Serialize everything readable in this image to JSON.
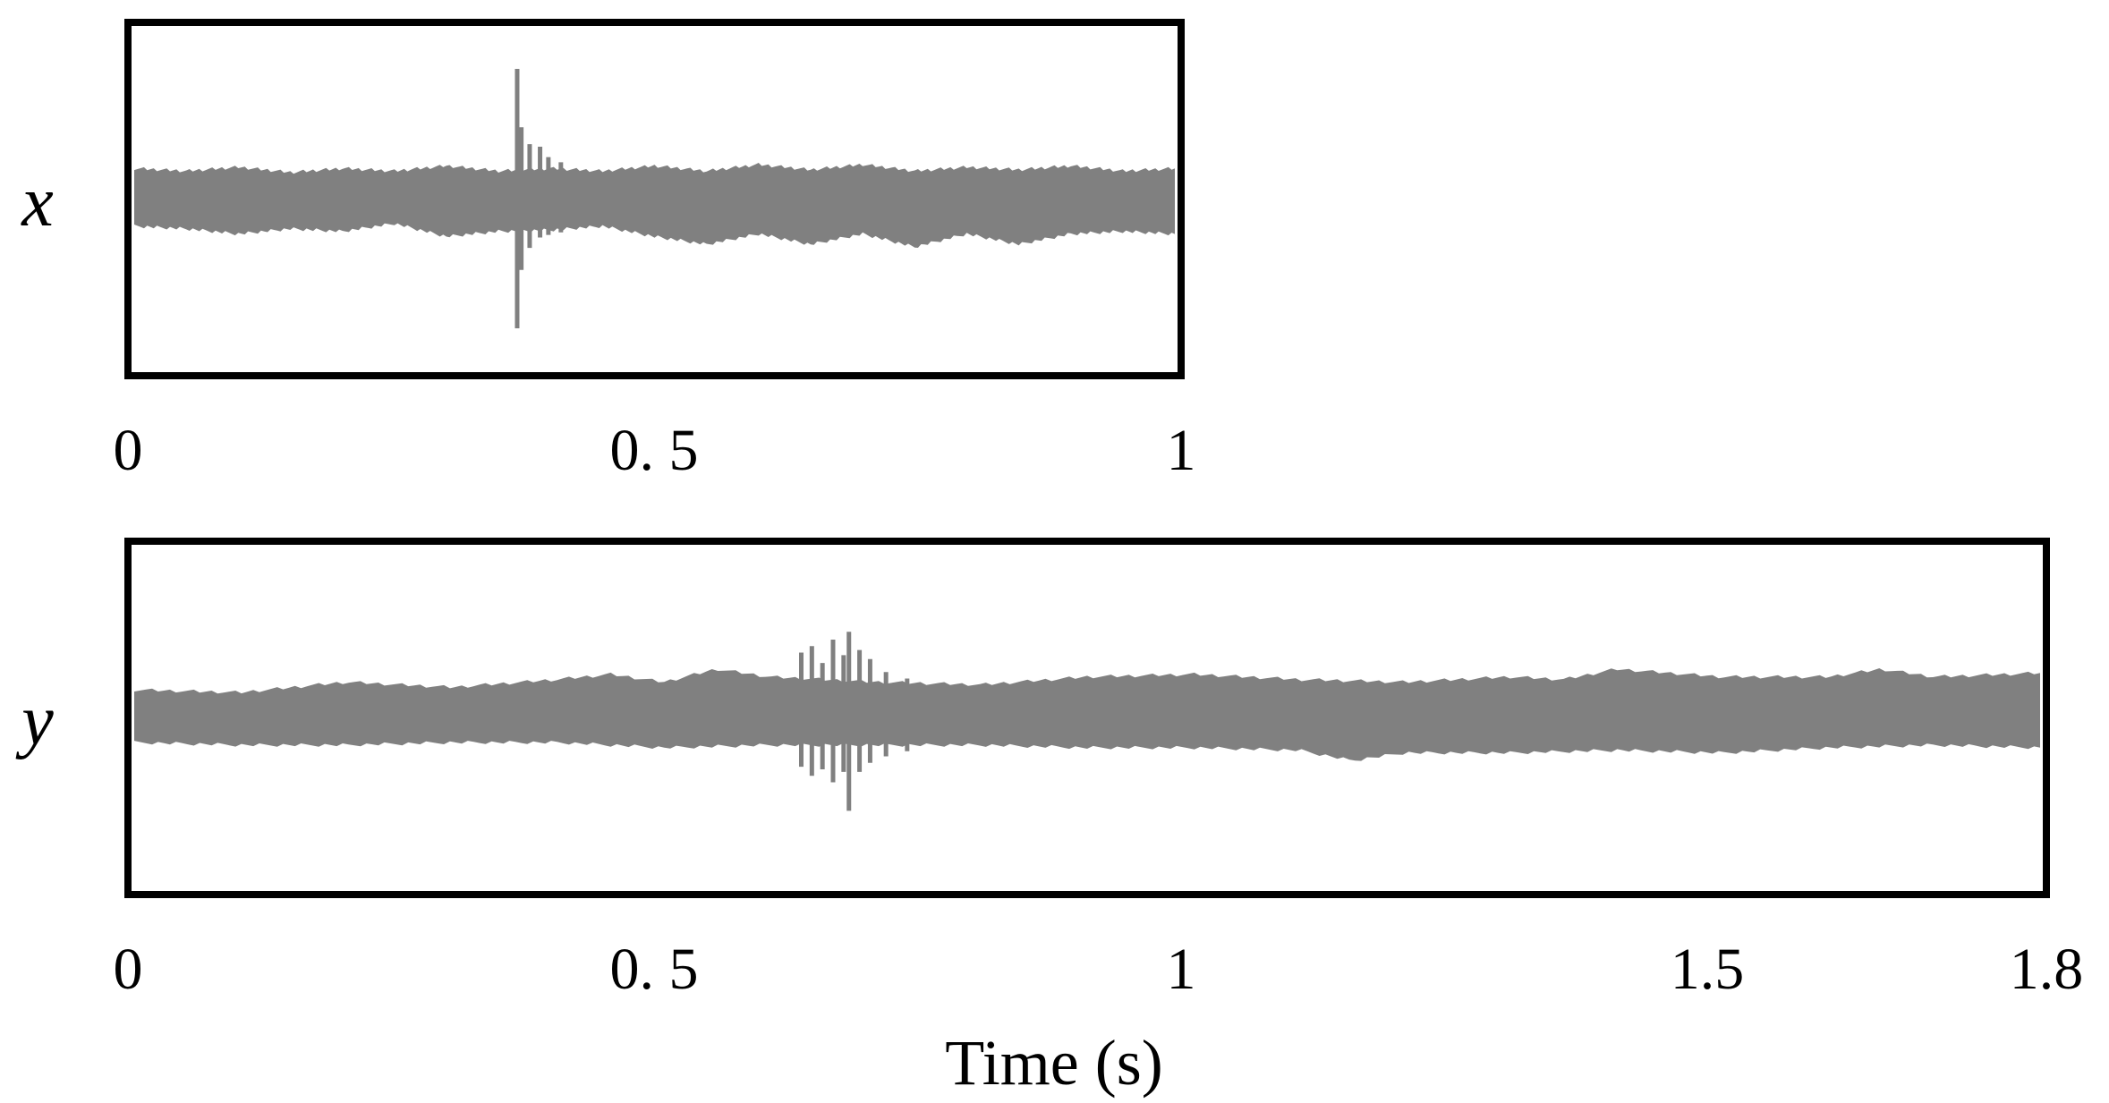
{
  "chart_data": [
    {
      "type": "line",
      "ylabel": "x",
      "xlabel": "",
      "xlim": [
        0,
        1
      ],
      "x_ticks": [
        "0",
        "0. 5",
        "1"
      ],
      "x_tick_values": [
        0,
        0.5,
        1
      ],
      "grid": false,
      "signal_color": "#808080",
      "series": [
        {
          "envelope_upper": [
            [
              0,
              0.22
            ],
            [
              0.05,
              0.2
            ],
            [
              0.1,
              0.23
            ],
            [
              0.15,
              0.19
            ],
            [
              0.2,
              0.22
            ],
            [
              0.25,
              0.2
            ],
            [
              0.3,
              0.24
            ],
            [
              0.35,
              0.2
            ],
            [
              0.4,
              0.22
            ],
            [
              0.45,
              0.2
            ],
            [
              0.5,
              0.24
            ],
            [
              0.55,
              0.2
            ],
            [
              0.6,
              0.25
            ],
            [
              0.65,
              0.21
            ],
            [
              0.7,
              0.25
            ],
            [
              0.75,
              0.2
            ],
            [
              0.8,
              0.23
            ],
            [
              0.85,
              0.21
            ],
            [
              0.9,
              0.24
            ],
            [
              0.95,
              0.2
            ],
            [
              1,
              0.22
            ]
          ],
          "envelope_lower": [
            [
              0,
              -0.2
            ],
            [
              0.05,
              -0.22
            ],
            [
              0.1,
              -0.26
            ],
            [
              0.15,
              -0.22
            ],
            [
              0.2,
              -0.24
            ],
            [
              0.25,
              -0.18
            ],
            [
              0.3,
              -0.28
            ],
            [
              0.35,
              -0.24
            ],
            [
              0.4,
              -0.23
            ],
            [
              0.45,
              -0.2
            ],
            [
              0.5,
              -0.28
            ],
            [
              0.55,
              -0.34
            ],
            [
              0.6,
              -0.26
            ],
            [
              0.65,
              -0.34
            ],
            [
              0.7,
              -0.26
            ],
            [
              0.75,
              -0.36
            ],
            [
              0.8,
              -0.26
            ],
            [
              0.85,
              -0.34
            ],
            [
              0.9,
              -0.26
            ],
            [
              0.95,
              -0.24
            ],
            [
              1,
              -0.26
            ]
          ],
          "events": [
            {
              "x": 0.368,
              "max": 1.0,
              "min": -1.0
            },
            {
              "x": 0.372,
              "max": 0.55,
              "min": -0.55
            },
            {
              "x": 0.38,
              "max": 0.42,
              "min": -0.38
            },
            {
              "x": 0.39,
              "max": 0.4,
              "min": -0.3
            },
            {
              "x": 0.398,
              "max": 0.32,
              "min": -0.28
            },
            {
              "x": 0.41,
              "max": 0.28,
              "min": -0.26
            }
          ]
        }
      ]
    },
    {
      "type": "line",
      "ylabel": "y",
      "xlabel": "Time (s)",
      "xlim": [
        0,
        1.8
      ],
      "x_ticks": [
        "0",
        "0. 5",
        "1",
        "1.5",
        "1.8"
      ],
      "x_tick_values": [
        0,
        0.5,
        1,
        1.5,
        1.8
      ],
      "grid": false,
      "signal_color": "#808080",
      "series": [
        {
          "envelope_upper": [
            [
              0,
              0.2
            ],
            [
              0.1,
              0.18
            ],
            [
              0.2,
              0.26
            ],
            [
              0.3,
              0.22
            ],
            [
              0.4,
              0.28
            ],
            [
              0.45,
              0.32
            ],
            [
              0.5,
              0.26
            ],
            [
              0.55,
              0.36
            ],
            [
              0.6,
              0.3
            ],
            [
              0.7,
              0.26
            ],
            [
              0.8,
              0.24
            ],
            [
              0.9,
              0.3
            ],
            [
              1.0,
              0.32
            ],
            [
              1.1,
              0.28
            ],
            [
              1.2,
              0.26
            ],
            [
              1.3,
              0.3
            ],
            [
              1.35,
              0.28
            ],
            [
              1.4,
              0.36
            ],
            [
              1.5,
              0.3
            ],
            [
              1.6,
              0.3
            ],
            [
              1.65,
              0.36
            ],
            [
              1.7,
              0.3
            ],
            [
              1.8,
              0.33
            ]
          ],
          "envelope_lower": [
            [
              0,
              -0.18
            ],
            [
              0.1,
              -0.2
            ],
            [
              0.2,
              -0.2
            ],
            [
              0.3,
              -0.18
            ],
            [
              0.4,
              -0.18
            ],
            [
              0.5,
              -0.22
            ],
            [
              0.6,
              -0.2
            ],
            [
              0.7,
              -0.2
            ],
            [
              0.8,
              -0.2
            ],
            [
              0.9,
              -0.22
            ],
            [
              1.0,
              -0.22
            ],
            [
              1.1,
              -0.24
            ],
            [
              1.15,
              -0.32
            ],
            [
              1.2,
              -0.26
            ],
            [
              1.3,
              -0.26
            ],
            [
              1.4,
              -0.24
            ],
            [
              1.5,
              -0.26
            ],
            [
              1.6,
              -0.22
            ],
            [
              1.7,
              -0.2
            ],
            [
              1.8,
              -0.22
            ]
          ],
          "events": [
            {
              "x": 0.63,
              "max": 0.5,
              "min": -0.38
            },
            {
              "x": 0.64,
              "max": 0.55,
              "min": -0.45
            },
            {
              "x": 0.65,
              "max": 0.42,
              "min": -0.4
            },
            {
              "x": 0.66,
              "max": 0.6,
              "min": -0.5
            },
            {
              "x": 0.67,
              "max": 0.48,
              "min": -0.42
            },
            {
              "x": 0.675,
              "max": 0.66,
              "min": -0.72
            },
            {
              "x": 0.685,
              "max": 0.52,
              "min": -0.42
            },
            {
              "x": 0.695,
              "max": 0.45,
              "min": -0.35
            },
            {
              "x": 0.71,
              "max": 0.35,
              "min": -0.3
            },
            {
              "x": 0.73,
              "max": 0.3,
              "min": -0.26
            }
          ]
        }
      ]
    }
  ]
}
